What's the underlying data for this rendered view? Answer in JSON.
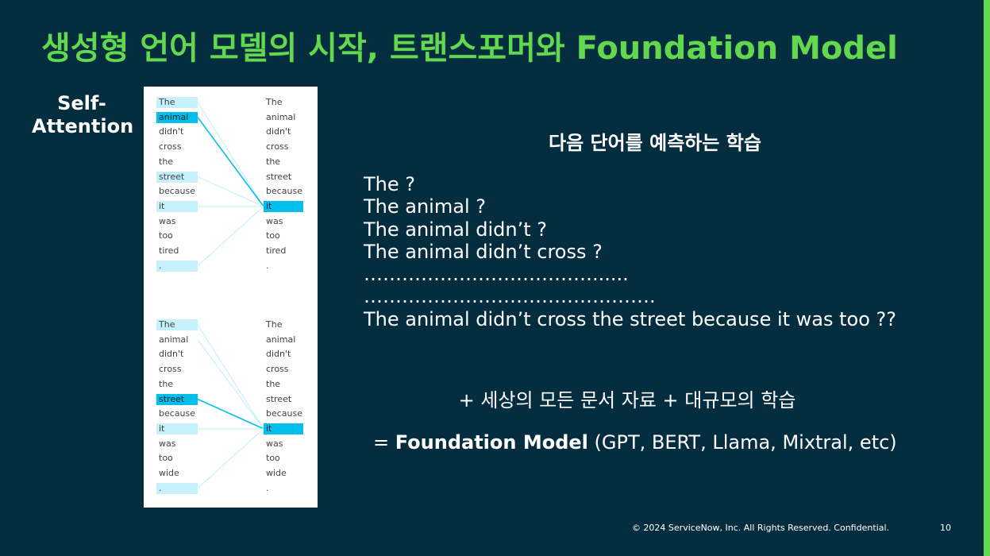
{
  "title": "생성형 언어 모델의 시작, 트랜스포머와 Foundation Model",
  "self_attention_label": "Self-Attention",
  "attention_diagrams": [
    {
      "left_tokens": [
        "The",
        "animal",
        "didn't",
        "cross",
        "the",
        "street",
        "because",
        "it",
        "was",
        "too",
        "tired",
        "."
      ],
      "right_tokens": [
        "The",
        "animal",
        "didn't",
        "cross",
        "the",
        "street",
        "because",
        "it",
        "was",
        "too",
        "tired",
        "."
      ],
      "query_token": "it",
      "strongest_attended": "animal"
    },
    {
      "left_tokens": [
        "The",
        "animal",
        "didn't",
        "cross",
        "the",
        "street",
        "because",
        "it",
        "was",
        "too",
        "wide",
        "."
      ],
      "right_tokens": [
        "The",
        "animal",
        "didn't",
        "cross",
        "the",
        "street",
        "because",
        "it",
        "was",
        "too",
        "wide",
        "."
      ],
      "query_token": "it",
      "strongest_attended": "street"
    }
  ],
  "heading": "다음 단어를 예측하는 학습",
  "sequence_lines": [
    "The ?",
    "The animal ?",
    "The animal didn’t ?",
    "The animal didn’t cross ?",
    "………………………………......",
    "……………………………………….",
    "The animal didn’t cross the street because it was too ??"
  ],
  "plus_line": "+ 세상의 모든 문서 자료 + 대규모의 학습",
  "foundation": {
    "prefix": "= ",
    "bold": "Foundation Model",
    "rest": " (GPT, BERT, Llama, Mixtral, etc)"
  },
  "footer": "© 2024 ServiceNow, Inc. All Rights Reserved. Confidential.",
  "page_number": "10",
  "colors": {
    "background": "#052d40",
    "accent_green": "#62d84e",
    "attention_strong": "#00bfea",
    "attention_light": "#c6f0fb"
  }
}
